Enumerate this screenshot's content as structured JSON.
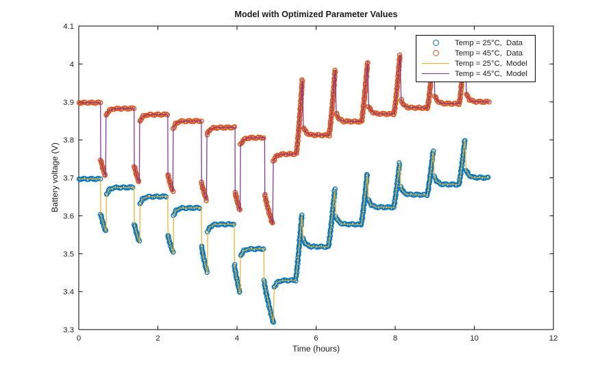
{
  "chart_data": {
    "type": "line",
    "title": "Model with Optimized Parameter Values",
    "xlabel": "Time (hours)",
    "ylabel": "Battery voltage (V)",
    "xlim": [
      0,
      12
    ],
    "ylim": [
      3.3,
      4.1
    ],
    "xticks": [
      0,
      2,
      4,
      6,
      8,
      10,
      12
    ],
    "xtick_labels": [
      "0",
      "2",
      "4",
      "6",
      "8",
      "10",
      "12"
    ],
    "yticks": [
      3.3,
      3.4,
      3.5,
      3.6,
      3.7,
      3.8,
      3.9,
      4.0,
      4.1
    ],
    "ytick_labels": [
      "3.3",
      "3.4",
      "3.5",
      "3.6",
      "3.7",
      "3.8",
      "3.9",
      "4",
      "4.1"
    ],
    "grid": false,
    "axis_color": "#000000",
    "background": "#ffffff",
    "legend": {
      "position": "northeast",
      "items": [
        {
          "label": "Temp = 25°C,  Data",
          "swatch": "marker",
          "color": "#0072BD"
        },
        {
          "label": "Temp = 45°C,  Data",
          "swatch": "marker",
          "color": "#D95319"
        },
        {
          "label": "Temp = 25°C,  Model",
          "swatch": "line",
          "color": "#EDB120"
        },
        {
          "label": "Temp = 45°C,  Model",
          "swatch": "line",
          "color": "#7E2F8E"
        }
      ]
    },
    "series": [
      {
        "name": "temp-25C",
        "marker_color": "#0072BD",
        "model_color": "#EDB120",
        "profile": [
          [
            "plateau",
            0,
            0.55,
            3.697
          ],
          [
            "dpulse",
            0.55,
            0.69,
            3.605,
            3.556
          ],
          [
            "plateau",
            0.7,
            1.4,
            3.675
          ],
          [
            "dpulse",
            1.4,
            1.54,
            3.578,
            3.528
          ],
          [
            "plateau",
            1.55,
            2.25,
            3.651
          ],
          [
            "dpulse",
            2.25,
            2.39,
            3.549,
            3.5
          ],
          [
            "plateau",
            2.4,
            3.1,
            3.621
          ],
          [
            "dpulse",
            3.1,
            3.25,
            3.52,
            3.448
          ],
          [
            "plateau",
            3.26,
            3.93,
            3.578
          ],
          [
            "dpulse",
            3.93,
            4.08,
            3.47,
            3.394
          ],
          [
            "plateau",
            4.09,
            4.68,
            3.513
          ],
          [
            "dpulse",
            4.68,
            4.92,
            3.428,
            3.318
          ],
          [
            "plateau",
            4.94,
            5.48,
            3.43
          ],
          [
            "cpulse",
            5.48,
            5.66,
            3.628
          ],
          [
            "plateau",
            5.67,
            6.31,
            3.518
          ],
          [
            "cpulse",
            6.31,
            6.49,
            3.69
          ],
          [
            "plateau",
            6.5,
            7.14,
            3.577
          ],
          [
            "cpulse",
            7.14,
            7.31,
            3.73
          ],
          [
            "plateau",
            7.32,
            7.96,
            3.622
          ],
          [
            "cpulse",
            7.96,
            8.13,
            3.756
          ],
          [
            "plateau",
            8.14,
            8.81,
            3.655
          ],
          [
            "cpulse",
            8.81,
            8.98,
            3.79
          ],
          [
            "plateau",
            8.99,
            9.61,
            3.682
          ],
          [
            "cpulse",
            9.61,
            9.78,
            3.818
          ],
          [
            "plateau",
            9.79,
            10.36,
            3.7
          ]
        ]
      },
      {
        "name": "temp-45C",
        "marker_color": "#D95319",
        "model_color": "#7E2F8E",
        "profile": [
          [
            "plateau",
            0,
            0.55,
            3.898
          ],
          [
            "dpulse",
            0.55,
            0.68,
            3.748,
            3.703
          ],
          [
            "plateau",
            0.69,
            1.4,
            3.883
          ],
          [
            "dpulse",
            1.4,
            1.53,
            3.731,
            3.686
          ],
          [
            "plateau",
            1.54,
            2.25,
            3.867
          ],
          [
            "dpulse",
            2.25,
            2.38,
            3.709,
            3.663
          ],
          [
            "plateau",
            2.39,
            3.1,
            3.85
          ],
          [
            "dpulse",
            3.1,
            3.23,
            3.687,
            3.641
          ],
          [
            "plateau",
            3.24,
            3.95,
            3.833
          ],
          [
            "dpulse",
            3.95,
            4.08,
            3.662,
            3.612
          ],
          [
            "plateau",
            4.09,
            4.7,
            3.806
          ],
          [
            "dpulse",
            4.7,
            4.9,
            3.655,
            3.578
          ],
          [
            "plateau",
            4.92,
            5.5,
            3.763
          ],
          [
            "cpulse",
            5.5,
            5.67,
            3.985
          ],
          [
            "plateau",
            5.68,
            6.33,
            3.812
          ],
          [
            "cpulse",
            6.33,
            6.5,
            4.008
          ],
          [
            "plateau",
            6.51,
            7.15,
            3.848
          ],
          [
            "cpulse",
            7.15,
            7.32,
            4.028
          ],
          [
            "plateau",
            7.33,
            7.97,
            3.868
          ],
          [
            "cpulse",
            7.97,
            8.14,
            4.047
          ],
          [
            "plateau",
            8.15,
            8.82,
            3.884
          ],
          [
            "cpulse",
            8.82,
            8.99,
            4.06
          ],
          [
            "plateau",
            9.0,
            9.62,
            3.895
          ],
          [
            "cpulse",
            9.62,
            9.79,
            4.082
          ],
          [
            "plateau",
            9.8,
            10.4,
            3.9
          ]
        ]
      }
    ]
  }
}
